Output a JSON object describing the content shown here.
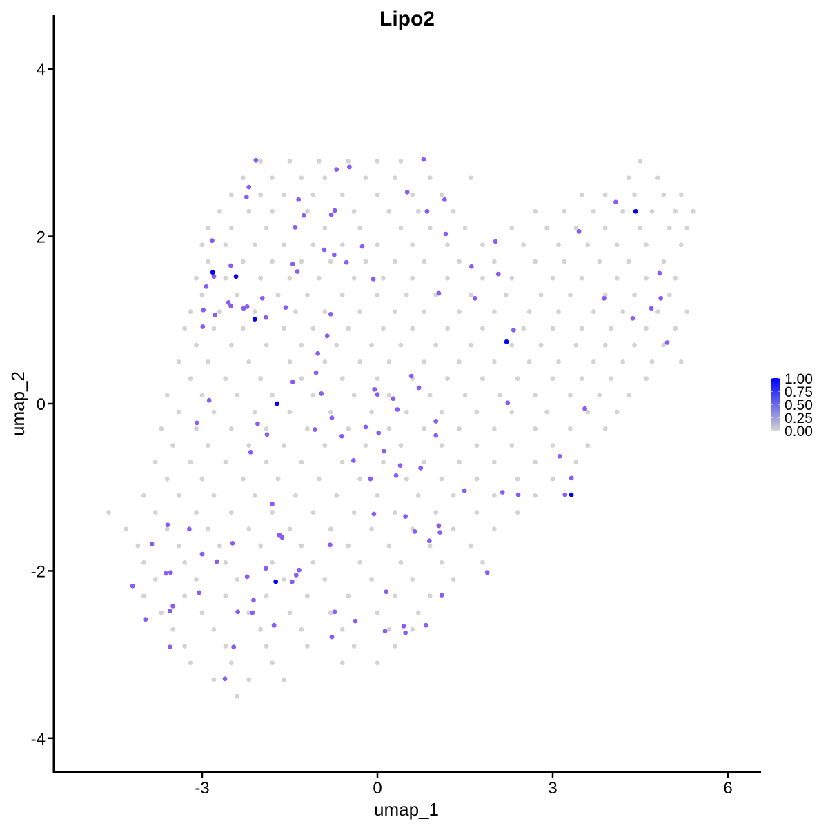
{
  "chart_data": {
    "type": "scatter",
    "title": "Lipo2",
    "xlabel": "umap_1",
    "ylabel": "umap_2",
    "xlim": [
      -5.54,
      6.57
    ],
    "ylim": [
      -4.41,
      4.6
    ],
    "xticks": [
      -3,
      0,
      3,
      6
    ],
    "xtick_labels": [
      "-3",
      "0",
      "3",
      "6"
    ],
    "yticks": [
      -4,
      -2,
      0,
      2,
      4
    ],
    "ytick_labels": [
      "-4",
      "-2",
      "0",
      "2",
      "4"
    ],
    "grid": false,
    "color_scale": {
      "low": "#d3d3d3",
      "high": "#0000ff",
      "range": [
        0,
        1
      ],
      "breaks": [
        1.0,
        0.75,
        0.5,
        0.25,
        0.0
      ],
      "labels": [
        "1.00",
        "0.75",
        "0.50",
        "0.25",
        "0.00"
      ],
      "legend_position": "right"
    },
    "background_points_value": 0,
    "background_points": [
      {
        "y": 2.9,
        "x": [
          -2.0,
          -1.5,
          -1.0,
          -0.5,
          0,
          0.4,
          4.5
        ]
      },
      {
        "y": 2.7,
        "x": [
          -2.3,
          -1.8,
          -1.3,
          -0.9,
          -0.2,
          0.3,
          0.9,
          1.6,
          4.3,
          4.8
        ]
      },
      {
        "y": 2.5,
        "x": [
          -2.5,
          -2.0,
          -1.6,
          -1.1,
          -0.6,
          0,
          0.6,
          1.1,
          3.5,
          3.9,
          4.4,
          4.9,
          5.2
        ]
      },
      {
        "y": 2.3,
        "x": [
          -2.7,
          -2.2,
          -1.8,
          -1.2,
          -0.4,
          0.2,
          0.7,
          1.3,
          2.7,
          3.2,
          3.7,
          4.2,
          4.7,
          5.1,
          5.4
        ]
      },
      {
        "y": 2.1,
        "x": [
          -2.9,
          -2.5,
          -1.9,
          -1.4,
          -0.9,
          -0.3,
          0.4,
          0.9,
          1.5,
          2.3,
          2.9,
          3.4,
          3.9,
          4.5,
          5.0,
          5.3
        ]
      },
      {
        "y": 1.9,
        "x": [
          -3.0,
          -2.6,
          -2.1,
          -1.6,
          -1.1,
          -0.6,
          0,
          0.6,
          1.2,
          1.8,
          2.5,
          3.1,
          3.6,
          4.1,
          4.6,
          5.2
        ]
      },
      {
        "y": 1.7,
        "x": [
          -2.9,
          -2.3,
          -1.8,
          -1.3,
          -0.8,
          -0.2,
          0.3,
          0.8,
          1.4,
          2.0,
          2.7,
          3.2,
          3.8,
          4.3,
          4.9
        ]
      },
      {
        "y": 1.5,
        "x": [
          -3.1,
          -2.6,
          -2.0,
          -1.5,
          -1.0,
          -0.4,
          0.1,
          0.6,
          1.2,
          1.8,
          2.3,
          3.0,
          3.5,
          4.1,
          4.6,
          5.1
        ]
      },
      {
        "y": 1.3,
        "x": [
          -3.0,
          -2.4,
          -1.7,
          -1.2,
          -0.6,
          0,
          0.5,
          1.0,
          1.6,
          2.2,
          2.8,
          3.3,
          3.9,
          4.4,
          5.0
        ]
      },
      {
        "y": 1.1,
        "x": [
          -3.2,
          -2.7,
          -2.1,
          -1.4,
          -0.9,
          -0.3,
          0.3,
          0.8,
          1.4,
          2.0,
          2.6,
          3.1,
          3.7,
          4.2,
          4.8,
          5.3
        ]
      },
      {
        "y": 0.9,
        "x": [
          -3.3,
          -2.8,
          -2.3,
          -1.6,
          -1.1,
          -0.5,
          0.1,
          0.6,
          1.2,
          1.8,
          2.5,
          3.0,
          3.5,
          4.0,
          4.6,
          5.1
        ]
      },
      {
        "y": 0.7,
        "x": [
          -3.1,
          -2.5,
          -1.9,
          -1.3,
          -0.7,
          -0.1,
          0.4,
          1.0,
          1.6,
          2.3,
          2.8,
          3.4,
          3.9,
          4.4,
          4.9
        ]
      },
      {
        "y": 0.5,
        "x": [
          -3.4,
          -2.9,
          -2.2,
          -1.5,
          -0.9,
          -0.3,
          0.2,
          0.8,
          1.4,
          2.0,
          2.6,
          3.1,
          3.7,
          4.2,
          4.7,
          5.2
        ]
      },
      {
        "y": 0.3,
        "x": [
          -3.2,
          -2.6,
          -2.0,
          -1.3,
          -0.6,
          0,
          0.6,
          1.2,
          1.8,
          2.4,
          3.0,
          3.5,
          4.0,
          4.6
        ]
      },
      {
        "y": 0.1,
        "x": [
          -3.6,
          -3.0,
          -2.4,
          -1.8,
          -1.1,
          -0.4,
          0.2,
          0.9,
          1.5,
          2.1,
          2.7,
          3.3,
          3.8,
          4.3
        ]
      },
      {
        "y": -0.1,
        "x": [
          -3.4,
          -2.8,
          -2.1,
          -1.5,
          -0.8,
          -0.1,
          0.5,
          1.1,
          1.7,
          2.3,
          2.9,
          3.6,
          4.1
        ]
      },
      {
        "y": -0.3,
        "x": [
          -3.7,
          -3.1,
          -2.5,
          -1.9,
          -1.2,
          -0.5,
          0.2,
          0.8,
          1.4,
          2.0,
          2.7,
          3.3,
          3.9
        ]
      },
      {
        "y": -0.5,
        "x": [
          -3.5,
          -2.9,
          -2.2,
          -1.6,
          -0.9,
          -0.2,
          0.4,
          1.1,
          1.7,
          2.3,
          3.0,
          3.6
        ]
      },
      {
        "y": -0.7,
        "x": [
          -3.8,
          -3.2,
          -2.6,
          -1.9,
          -1.3,
          -0.6,
          0.1,
          0.8,
          1.4,
          2.0,
          2.7,
          3.4
        ]
      },
      {
        "y": -0.9,
        "x": [
          -3.6,
          -3.0,
          -2.3,
          -1.7,
          -1.0,
          -0.3,
          0.5,
          1.1,
          1.7,
          2.4,
          3.0
        ]
      },
      {
        "y": -1.1,
        "x": [
          -4.0,
          -3.4,
          -2.8,
          -2.1,
          -1.4,
          -0.7,
          0,
          0.7,
          1.3,
          2.0,
          2.7
        ]
      },
      {
        "y": -1.3,
        "x": [
          -4.6,
          -3.8,
          -3.1,
          -2.5,
          -1.8,
          -1.1,
          -0.4,
          0.3,
          1.0,
          1.7,
          2.4
        ]
      },
      {
        "y": -1.5,
        "x": [
          -4.3,
          -3.6,
          -2.9,
          -2.2,
          -1.5,
          -0.8,
          -0.1,
          0.6,
          1.3,
          2.0
        ]
      },
      {
        "y": -1.7,
        "x": [
          -4.1,
          -3.4,
          -2.7,
          -2.0,
          -1.3,
          -0.5,
          0.2,
          0.9,
          1.6
        ]
      },
      {
        "y": -1.9,
        "x": [
          -4.0,
          -3.3,
          -2.6,
          -1.8,
          -1.1,
          -0.3,
          0.4,
          1.1,
          1.8
        ]
      },
      {
        "y": -2.1,
        "x": [
          -3.8,
          -3.1,
          -2.4,
          -1.6,
          -0.9,
          -0.1,
          0.6,
          1.3
        ]
      },
      {
        "y": -2.3,
        "x": [
          -4.0,
          -3.3,
          -2.6,
          -1.9,
          -1.2,
          -0.5,
          0.3,
          0.9
        ]
      },
      {
        "y": -2.5,
        "x": [
          -3.7,
          -3.0,
          -2.2,
          -1.5,
          -0.8,
          0,
          0.7
        ]
      },
      {
        "y": -2.7,
        "x": [
          -3.5,
          -2.8,
          -2.0,
          -1.3,
          -0.6,
          0.2,
          0.6
        ]
      },
      {
        "y": -2.9,
        "x": [
          -3.3,
          -2.6,
          -1.9,
          -1.2,
          -0.4,
          0.3
        ]
      },
      {
        "y": -3.1,
        "x": [
          -3.2,
          -2.5,
          -1.8,
          -0.6,
          0.0
        ]
      },
      {
        "y": -3.3,
        "x": [
          -2.8,
          -2.2,
          -1.6
        ]
      },
      {
        "y": -3.5,
        "x": [
          -2.4
        ]
      }
    ],
    "expressing_points": [
      [
        -2.82,
        1.57,
        1
      ],
      [
        -2.42,
        1.52,
        1
      ],
      [
        -2.1,
        1.01,
        1
      ],
      [
        -1.72,
        0.0,
        1
      ],
      [
        -1.74,
        -2.13,
        1
      ],
      [
        2.21,
        0.74,
        1
      ],
      [
        3.32,
        -1.09,
        1
      ],
      [
        4.42,
        2.3,
        1
      ],
      [
        -2.08,
        2.91,
        0.5
      ],
      [
        -2.2,
        2.59,
        0.5
      ],
      [
        -2.24,
        2.47,
        0.5
      ],
      [
        -2.83,
        1.95,
        0.5
      ],
      [
        -2.51,
        1.65,
        0.5
      ],
      [
        -2.8,
        1.52,
        0.5
      ],
      [
        -2.93,
        1.4,
        0.5
      ],
      [
        -2.98,
        1.12,
        0.5
      ],
      [
        -2.78,
        1.06,
        0.5
      ],
      [
        -2.99,
        0.92,
        0.5
      ],
      [
        -2.55,
        1.21,
        0.5
      ],
      [
        -2.51,
        1.17,
        0.5
      ],
      [
        -2.29,
        1.14,
        0.5
      ],
      [
        -2.23,
        1.16,
        0.5
      ],
      [
        -1.97,
        1.26,
        0.5
      ],
      [
        -1.91,
        1.03,
        0.5
      ],
      [
        -1.57,
        1.15,
        0.5
      ],
      [
        -1.35,
        2.44,
        0.5
      ],
      [
        -1.26,
        2.25,
        0.5
      ],
      [
        -1.41,
        2.11,
        0.5
      ],
      [
        -1.45,
        1.67,
        0.5
      ],
      [
        -1.37,
        1.58,
        0.5
      ],
      [
        -0.91,
        1.84,
        0.5
      ],
      [
        -0.73,
        2.31,
        0.5
      ],
      [
        -0.79,
        2.26,
        0.5
      ],
      [
        -0.7,
        2.8,
        0.5
      ],
      [
        -0.48,
        2.83,
        0.5
      ],
      [
        0.79,
        2.92,
        0.5
      ],
      [
        0.51,
        2.53,
        0.5
      ],
      [
        0.85,
        2.3,
        0.5
      ],
      [
        1.15,
        2.44,
        0.5
      ],
      [
        1.17,
        2.03,
        0.5
      ],
      [
        -0.26,
        1.88,
        0.5
      ],
      [
        -0.74,
        1.78,
        0.5
      ],
      [
        -0.53,
        1.69,
        0.5
      ],
      [
        -0.07,
        1.49,
        0.5
      ],
      [
        -0.8,
        1.07,
        0.5
      ],
      [
        -0.86,
        0.81,
        0.5
      ],
      [
        -1.02,
        0.6,
        0.5
      ],
      [
        -1.05,
        0.37,
        0.5
      ],
      [
        -1.45,
        0.26,
        0.5
      ],
      [
        -0.96,
        0.12,
        0.5
      ],
      [
        -0.05,
        0.17,
        0.5
      ],
      [
        0,
        0.11,
        0.5
      ],
      [
        0.27,
        0.06,
        0.5
      ],
      [
        0.34,
        -0.07,
        0.5
      ],
      [
        0.58,
        0.33,
        0.5
      ],
      [
        0.71,
        0.19,
        0.5
      ],
      [
        1.0,
        -0.21,
        0.5
      ],
      [
        1.0,
        -0.38,
        0.5
      ],
      [
        -0.78,
        -0.17,
        0.5
      ],
      [
        -1.07,
        -0.31,
        0.5
      ],
      [
        -0.61,
        -0.39,
        0.5
      ],
      [
        -0.2,
        -0.28,
        0.5
      ],
      [
        0.02,
        -0.35,
        0.5
      ],
      [
        -0.41,
        -0.68,
        0.5
      ],
      [
        0.11,
        -0.57,
        0.5
      ],
      [
        -0.12,
        -0.9,
        0.5
      ],
      [
        0.39,
        -0.74,
        0.5
      ],
      [
        0.32,
        -0.86,
        0.5
      ],
      [
        0.74,
        -0.77,
        0.5
      ],
      [
        1.49,
        -1.04,
        0.5
      ],
      [
        2.14,
        -1.06,
        0.5
      ],
      [
        2.41,
        -1.09,
        0.5
      ],
      [
        3.12,
        -0.63,
        0.5
      ],
      [
        3.32,
        -0.89,
        0.5
      ],
      [
        3.21,
        -1.09,
        0.5
      ],
      [
        3.55,
        -0.06,
        0.5
      ],
      [
        2.23,
        0.01,
        0.5
      ],
      [
        2.33,
        0.88,
        0.5
      ],
      [
        2.02,
        1.94,
        0.5
      ],
      [
        2.07,
        1.55,
        0.5
      ],
      [
        1.67,
        1.26,
        0.5
      ],
      [
        1.61,
        1.64,
        0.5
      ],
      [
        1.05,
        1.32,
        0.5
      ],
      [
        3.45,
        2.06,
        0.5
      ],
      [
        3.88,
        1.26,
        0.5
      ],
      [
        4.08,
        2.41,
        0.5
      ],
      [
        4.37,
        1.02,
        0.5
      ],
      [
        4.69,
        1.14,
        0.5
      ],
      [
        4.85,
        1.26,
        0.5
      ],
      [
        4.83,
        1.56,
        0.5
      ],
      [
        4.96,
        0.73,
        0.5
      ],
      [
        -1.89,
        -0.37,
        0.5
      ],
      [
        -2.05,
        -0.24,
        0.5
      ],
      [
        -2.17,
        -0.58,
        0.5
      ],
      [
        -2.88,
        0.04,
        0.5
      ],
      [
        -3.09,
        -0.23,
        0.5
      ],
      [
        -1.8,
        -1.2,
        0.5
      ],
      [
        -1.68,
        -1.57,
        0.5
      ],
      [
        -1.63,
        -1.6,
        0.5
      ],
      [
        -0.81,
        -1.69,
        0.5
      ],
      [
        -0.06,
        -1.32,
        0.5
      ],
      [
        0.48,
        -1.35,
        0.5
      ],
      [
        0.64,
        -1.53,
        0.5
      ],
      [
        0.89,
        -1.64,
        0.5
      ],
      [
        1.05,
        -1.46,
        0.5
      ],
      [
        1.07,
        -1.54,
        0.5
      ],
      [
        1.88,
        -2.02,
        0.5
      ],
      [
        1.1,
        -2.29,
        0.5
      ],
      [
        0.15,
        -2.25,
        0.5
      ],
      [
        -1.34,
        -1.99,
        0.5
      ],
      [
        -1.39,
        -2.05,
        0.5
      ],
      [
        -1.46,
        -2.13,
        0.5
      ],
      [
        -1.91,
        -1.97,
        0.5
      ],
      [
        -2.23,
        -2.07,
        0.5
      ],
      [
        -2.48,
        -1.67,
        0.5
      ],
      [
        -2.75,
        -1.89,
        0.5
      ],
      [
        -3.0,
        -1.8,
        0.5
      ],
      [
        -3.22,
        -1.5,
        0.5
      ],
      [
        -3.59,
        -1.45,
        0.5
      ],
      [
        -3.86,
        -1.68,
        0.5
      ],
      [
        -3.62,
        -2.03,
        0.5
      ],
      [
        -3.54,
        -2.02,
        0.5
      ],
      [
        -4.19,
        -2.18,
        0.5
      ],
      [
        -3.97,
        -2.58,
        0.5
      ],
      [
        -3.05,
        -2.26,
        0.5
      ],
      [
        -3.55,
        -2.48,
        0.5
      ],
      [
        -3.5,
        -2.42,
        0.5
      ],
      [
        -3.55,
        -2.91,
        0.5
      ],
      [
        -2.39,
        -2.49,
        0.5
      ],
      [
        -2.14,
        -2.5,
        0.5
      ],
      [
        -2.12,
        -2.35,
        0.5
      ],
      [
        -2.46,
        -2.91,
        0.5
      ],
      [
        -2.61,
        -3.29,
        0.5
      ],
      [
        -1.77,
        -2.65,
        0.5
      ],
      [
        -0.73,
        -2.49,
        0.5
      ],
      [
        -0.78,
        -2.79,
        0.5
      ],
      [
        -0.38,
        -2.6,
        0.5
      ],
      [
        0.13,
        -2.72,
        0.5
      ],
      [
        0.45,
        -2.66,
        0.5
      ],
      [
        0.48,
        -2.74,
        0.5
      ],
      [
        0.83,
        -2.65,
        0.5
      ]
    ]
  }
}
